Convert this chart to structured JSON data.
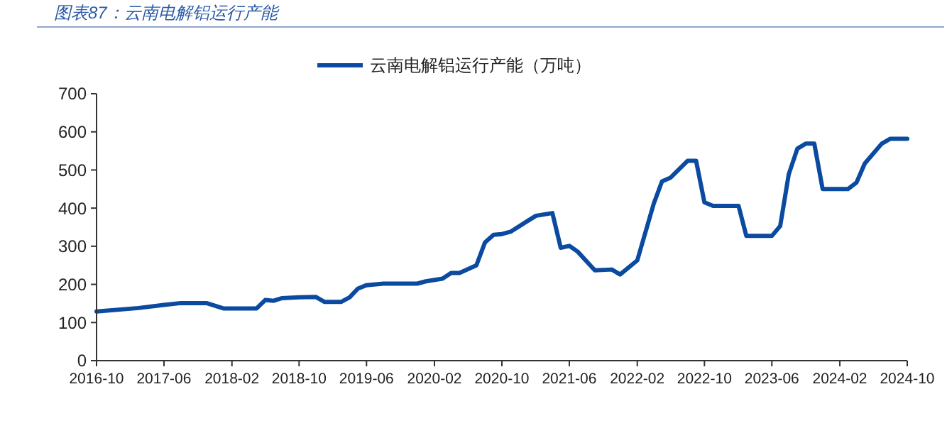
{
  "chart_data": {
    "type": "line",
    "title": "图表87：云南电解铝运行产能",
    "x": [
      "2016-10",
      "2017-03",
      "2017-06",
      "2017-08",
      "2017-11",
      "2018-01",
      "2018-05",
      "2018-06",
      "2018-07",
      "2018-08",
      "2018-10",
      "2018-12",
      "2019-01",
      "2019-03",
      "2019-04",
      "2019-05",
      "2019-06",
      "2019-08",
      "2019-12",
      "2020-01",
      "2020-03",
      "2020-04",
      "2020-05",
      "2020-07",
      "2020-08",
      "2020-09",
      "2020-10",
      "2020-11",
      "2021-01",
      "2021-02",
      "2021-04",
      "2021-05",
      "2021-06",
      "2021-07",
      "2021-09",
      "2021-11",
      "2021-12",
      "2022-02",
      "2022-04",
      "2022-05",
      "2022-06",
      "2022-08",
      "2022-09",
      "2022-10",
      "2022-11",
      "2023-02",
      "2023-03",
      "2023-06",
      "2023-07",
      "2023-08",
      "2023-09",
      "2023-10",
      "2023-11",
      "2023-12",
      "2024-03",
      "2024-04",
      "2024-05",
      "2024-07",
      "2024-08",
      "2024-10"
    ],
    "series": [
      {
        "name": "云南电解铝运行产能（万吨）",
        "color": "#0a4aa0",
        "values": [
          129,
          138,
          146,
          151,
          151,
          137,
          137,
          159,
          157,
          164,
          166,
          167,
          154,
          154,
          166,
          189,
          198,
          202,
          202,
          208,
          215,
          230,
          230,
          250,
          310,
          330,
          332,
          338,
          366,
          380,
          387,
          296,
          301,
          286,
          237,
          239,
          226,
          263,
          411,
          470,
          480,
          524,
          524,
          415,
          406,
          406,
          327,
          327,
          353,
          489,
          556,
          569,
          569,
          450,
          450,
          467,
          517,
          569,
          582,
          582
        ]
      }
    ],
    "xlim": [
      "2016-10",
      "2024-10"
    ],
    "xticks": [
      "2016-10",
      "2017-06",
      "2018-02",
      "2018-10",
      "2019-06",
      "2020-02",
      "2020-10",
      "2021-06",
      "2022-02",
      "2022-10",
      "2023-06",
      "2024-02",
      "2024-10"
    ],
    "ylim": [
      0,
      700
    ],
    "yticks": [
      0,
      100,
      200,
      300,
      400,
      500,
      600,
      700
    ],
    "grid": false,
    "legend": "top",
    "marker": "none",
    "line_style": "solid"
  }
}
